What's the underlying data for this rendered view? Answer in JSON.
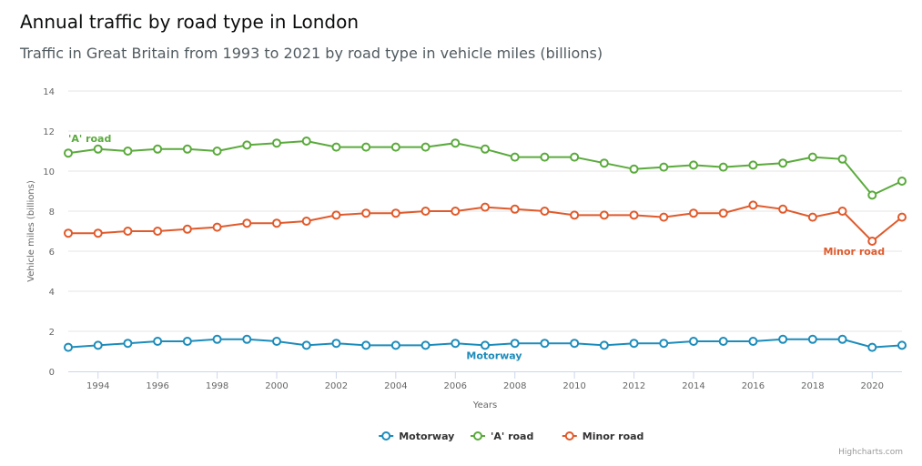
{
  "title": "Annual traffic by road type in London",
  "subtitle": "Traffic in Great Britain from 1993 to 2021 by road type in vehicle miles (billions)",
  "credit": "Highcharts.com",
  "chart_data": {
    "type": "line",
    "title": "Annual traffic by road type in London",
    "subtitle": "Traffic in Great Britain from 1993 to 2021 by road type in vehicle miles (billions)",
    "xlabel": "Years",
    "ylabel": "Vehicle miles (billions)",
    "xlim": [
      1993,
      2021
    ],
    "ylim": [
      0,
      14
    ],
    "x_ticks": [
      1994,
      1996,
      1998,
      2000,
      2002,
      2004,
      2006,
      2008,
      2010,
      2012,
      2014,
      2016,
      2018,
      2020
    ],
    "y_ticks": [
      0,
      2,
      4,
      6,
      8,
      10,
      12,
      14
    ],
    "grid": true,
    "legend": "bottom-center",
    "x": [
      1993,
      1994,
      1995,
      1996,
      1997,
      1998,
      1999,
      2000,
      2001,
      2002,
      2003,
      2004,
      2005,
      2006,
      2007,
      2008,
      2009,
      2010,
      2011,
      2012,
      2013,
      2014,
      2015,
      2016,
      2017,
      2018,
      2019,
      2020,
      2021
    ],
    "series": [
      {
        "name": "Motorway",
        "color": "#1d8cbb",
        "label": "Motorway",
        "label_at_x": 2007,
        "values": [
          1.2,
          1.3,
          1.4,
          1.5,
          1.5,
          1.6,
          1.6,
          1.5,
          1.3,
          1.4,
          1.3,
          1.3,
          1.3,
          1.4,
          1.3,
          1.4,
          1.4,
          1.4,
          1.3,
          1.4,
          1.4,
          1.5,
          1.5,
          1.5,
          1.6,
          1.6,
          1.6,
          1.2,
          1.3
        ]
      },
      {
        "name": "'A' road",
        "color": "#5aaa3c",
        "label": "'A' road",
        "label_at_x": 1993,
        "values": [
          10.9,
          11.1,
          11.0,
          11.1,
          11.1,
          11.0,
          11.3,
          11.4,
          11.5,
          11.2,
          11.2,
          11.2,
          11.2,
          11.4,
          11.1,
          10.7,
          10.7,
          10.7,
          10.4,
          10.1,
          10.2,
          10.3,
          10.2,
          10.3,
          10.4,
          10.7,
          10.6,
          8.8,
          9.5
        ]
      },
      {
        "name": "Minor road",
        "color": "#e05a2b",
        "label": "Minor road",
        "label_at_x": 2020,
        "values": [
          6.9,
          6.9,
          7.0,
          7.0,
          7.1,
          7.2,
          7.4,
          7.4,
          7.5,
          7.8,
          7.9,
          7.9,
          8.0,
          8.0,
          8.2,
          8.1,
          8.0,
          7.8,
          7.8,
          7.8,
          7.7,
          7.9,
          7.9,
          8.3,
          8.1,
          7.7,
          8.0,
          6.5,
          7.7
        ]
      }
    ]
  }
}
